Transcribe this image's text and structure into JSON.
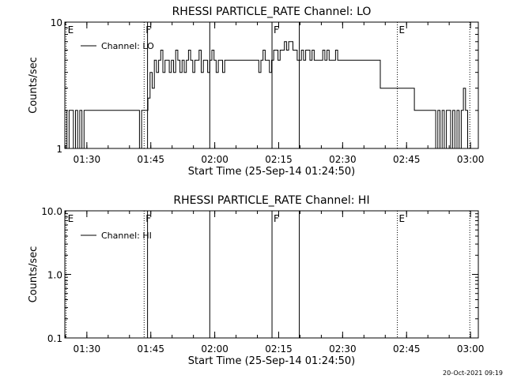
{
  "footer": {
    "timestamp": "20-Oct-2021 09:19"
  },
  "chart_data": [
    {
      "type": "line",
      "title": "RHESSI PARTICLE_RATE Channel: LO",
      "xlabel": "Start Time (25-Sep-14 01:24:50)",
      "ylabel": "Counts/sec",
      "yscale": "log",
      "ylim": [
        1,
        10
      ],
      "ytick_labels": [
        "1",
        "10"
      ],
      "xlim_minutes": [
        0,
        97
      ],
      "xtick_labels": [
        "01:30",
        "01:45",
        "02:00",
        "02:15",
        "02:30",
        "02:45",
        "03:00"
      ],
      "legend": {
        "placement": "top-left",
        "label": "Channel: LO"
      },
      "markers": [
        {
          "label": "E",
          "t": 0.3,
          "style": "dotted"
        },
        {
          "label": "F",
          "t": 18.6,
          "style": "dotted"
        },
        {
          "label": "",
          "t": 19.4,
          "style": "solid"
        },
        {
          "label": "",
          "t": 34.0,
          "style": "solid"
        },
        {
          "label": "F",
          "t": 48.6,
          "style": "solid"
        },
        {
          "label": "",
          "t": 55.0,
          "style": "solid"
        },
        {
          "label": "E",
          "t": 78.0,
          "style": "dotted"
        },
        {
          "label": "",
          "t": 95.0,
          "style": "dotted"
        }
      ],
      "series": [
        {
          "name": "Channel: LO",
          "x": [
            0,
            0.5,
            1,
            1.5,
            2,
            2.5,
            3,
            3.5,
            4,
            4.5,
            5,
            5.5,
            6,
            6.5,
            7,
            7.5,
            8,
            8.5,
            9,
            9.5,
            10,
            10.5,
            11,
            11.5,
            12,
            12.5,
            13,
            13.5,
            14,
            14.5,
            15,
            15.5,
            16,
            16.5,
            17,
            17.5,
            18,
            18.5,
            19,
            19.5,
            20,
            20.5,
            21,
            21.5,
            22,
            22.5,
            23,
            23.5,
            24,
            24.5,
            25,
            25.5,
            26,
            26.5,
            27,
            27.5,
            28,
            28.5,
            29,
            29.5,
            30,
            30.5,
            31,
            31.5,
            32,
            32.5,
            33,
            33.5,
            34,
            34.5,
            35,
            35.5,
            36,
            36.5,
            37,
            37.5,
            38,
            38.5,
            39,
            39.5,
            40,
            40.5,
            41,
            41.5,
            42,
            42.5,
            43,
            43.5,
            44,
            44.5,
            45,
            45.5,
            46,
            46.5,
            47,
            47.5,
            48,
            48.5,
            49,
            49.5,
            50,
            50.5,
            51,
            51.5,
            52,
            52.5,
            53,
            53.5,
            54,
            54.5,
            55,
            55.5,
            56,
            56.5,
            57,
            57.5,
            58,
            58.5,
            59,
            59.5,
            60,
            60.5,
            61,
            61.5,
            62,
            62.5,
            63,
            63.5,
            64,
            64.5,
            65,
            65.5,
            66,
            66.5,
            67,
            67.5,
            68,
            68.5,
            69,
            69.5,
            70,
            70.5,
            71,
            71.5,
            72,
            72.5,
            73,
            73.5,
            74,
            74.5,
            75,
            75.5,
            76,
            76.5,
            77,
            77.5,
            78,
            78.5,
            79,
            79.5,
            80,
            80.5,
            81,
            81.5,
            82,
            82.5,
            83,
            83.5,
            84,
            84.5,
            85,
            85.5,
            86,
            86.5,
            87,
            87.5,
            88,
            88.5,
            89,
            89.5,
            90,
            90.5,
            91,
            91.5,
            92,
            92.5,
            93,
            93.5,
            94,
            94.5
          ],
          "y": [
            2,
            1,
            2,
            2,
            1,
            2,
            1,
            2,
            1,
            2,
            2,
            2,
            2,
            2,
            2,
            2,
            2,
            2,
            2,
            2,
            2,
            2,
            2,
            2,
            2,
            2,
            2,
            2,
            2,
            2,
            2,
            2,
            2,
            2,
            2,
            1,
            2,
            2,
            2,
            2.5,
            4,
            3,
            5,
            4,
            5,
            6,
            4,
            5,
            5,
            4,
            5,
            4,
            6,
            5,
            4,
            5,
            4,
            5,
            6,
            5,
            4,
            5,
            5,
            6,
            4,
            5,
            5,
            4,
            5,
            6,
            5,
            4,
            5,
            5,
            4,
            5,
            5,
            5,
            5,
            5,
            5,
            5,
            5,
            5,
            5,
            5,
            5,
            5,
            5,
            5,
            5,
            4,
            5,
            6,
            5,
            5,
            4,
            5,
            6,
            6,
            5,
            6,
            6,
            7,
            6,
            7,
            7,
            6,
            6,
            5,
            5,
            6,
            5,
            6,
            6,
            5,
            6,
            5,
            5,
            5,
            5,
            6,
            5,
            6,
            5,
            5,
            5,
            6,
            5,
            5,
            5,
            5,
            5,
            5,
            5,
            5,
            5,
            5,
            5,
            5,
            5,
            5,
            5,
            5,
            5,
            5,
            5,
            5,
            3,
            3,
            3,
            3,
            3,
            3,
            3,
            3,
            3,
            3,
            3,
            3,
            3,
            3,
            3,
            3,
            2,
            2,
            2,
            2,
            2,
            2,
            2,
            2,
            2,
            2,
            1,
            2,
            1,
            2,
            1,
            2,
            2,
            1,
            2,
            1,
            2,
            1,
            2,
            3,
            2,
            1
          ]
        }
      ]
    },
    {
      "type": "line",
      "title": "RHESSI PARTICLE_RATE Channel: HI",
      "xlabel": "Start Time (25-Sep-14 01:24:50)",
      "ylabel": "Counts/sec",
      "yscale": "log",
      "ylim": [
        0.1,
        10
      ],
      "ytick_labels": [
        "0.1",
        "1.0",
        "10.0"
      ],
      "xlim_minutes": [
        0,
        97
      ],
      "xtick_labels": [
        "01:30",
        "01:45",
        "02:00",
        "02:15",
        "02:30",
        "02:45",
        "03:00"
      ],
      "legend": {
        "placement": "top-left",
        "label": "Channel: HI"
      },
      "markers": [
        {
          "label": "E",
          "t": 0.3,
          "style": "dotted"
        },
        {
          "label": "F",
          "t": 18.6,
          "style": "dotted"
        },
        {
          "label": "",
          "t": 19.4,
          "style": "solid"
        },
        {
          "label": "",
          "t": 34.0,
          "style": "solid"
        },
        {
          "label": "F",
          "t": 48.6,
          "style": "solid"
        },
        {
          "label": "",
          "t": 55.0,
          "style": "solid"
        },
        {
          "label": "E",
          "t": 78.0,
          "style": "dotted"
        },
        {
          "label": "",
          "t": 95.0,
          "style": "dotted"
        }
      ],
      "series": [
        {
          "name": "Channel: HI",
          "x": [],
          "y": []
        }
      ]
    }
  ]
}
